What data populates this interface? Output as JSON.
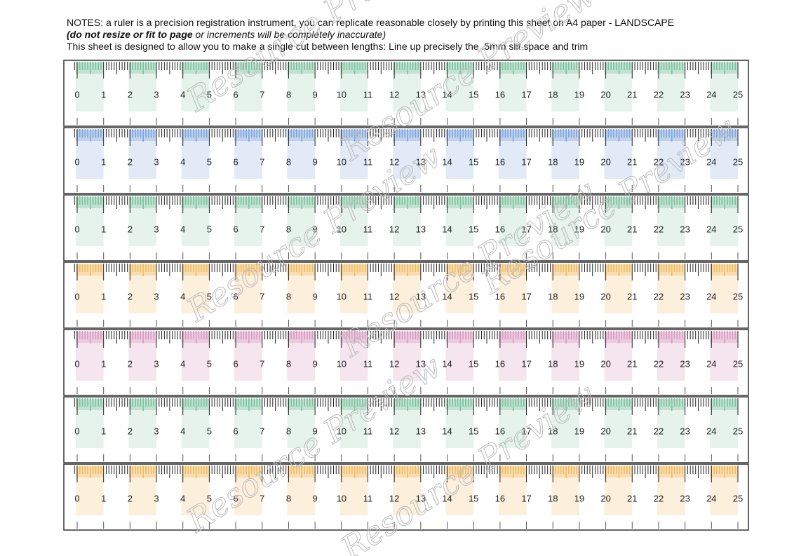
{
  "notes": {
    "line1": "NOTES: a ruler is a precision registration instrument, you can replicate reasonable closely by printing this sheet on A4 paper - LANDSCAPE",
    "line2_bold": "(do not resize or fit to page",
    "line2_rest": " or increments will be completely inaccurate)",
    "line3": "This sheet is designed to allow you to make a single cut between lengths: Line up precisely the .5mm slit space and trim"
  },
  "watermark": "Resource Preview",
  "labels": [
    0,
    1,
    2,
    3,
    4,
    5,
    6,
    7,
    8,
    9,
    10,
    11,
    12,
    13,
    14,
    15,
    16,
    17,
    18,
    19,
    20,
    21,
    22,
    23,
    24,
    25
  ],
  "rulers": [
    {
      "color": "#7cc3a0",
      "tint": "#e6f3ec"
    },
    {
      "color": "#7fa6dc",
      "tint": "#e2eaf7"
    },
    {
      "color": "#7cc3a0",
      "tint": "#e6f3ec"
    },
    {
      "color": "#f0bd62",
      "tint": "#fcefdc"
    },
    {
      "color": "#dc9cc4",
      "tint": "#f5e5ef"
    },
    {
      "color": "#7cc3a0",
      "tint": "#e6f3ec"
    },
    {
      "color": "#f0bd62",
      "tint": "#fcefdc"
    }
  ]
}
